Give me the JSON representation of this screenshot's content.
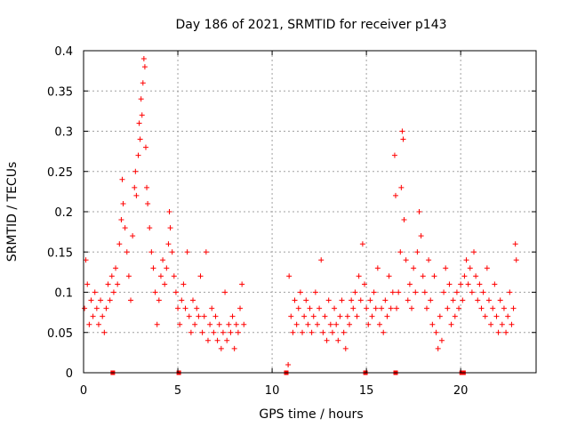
{
  "chart_data": {
    "type": "scatter",
    "title": "Day 186 of 2021, SRMTID for receiver p143",
    "xlabel": "GPS time / hours",
    "ylabel": "SRMTID / TECUs",
    "xlim": [
      0,
      24
    ],
    "ylim": [
      0,
      0.4
    ],
    "x_ticks": [
      0,
      5,
      10,
      15,
      20
    ],
    "x_tick_labels": [
      "0",
      "5",
      "10",
      "15",
      "20"
    ],
    "y_ticks": [
      0,
      0.05,
      0.1,
      0.15,
      0.2,
      0.25,
      0.3,
      0.35,
      0.4
    ],
    "y_tick_labels": [
      "0",
      "0.05",
      "0.1",
      "0.15",
      "0.2",
      "0.25",
      "0.3",
      "0.35",
      "0.4"
    ],
    "grid": true,
    "marker": "plus",
    "color": "#ff0000",
    "zero_markers_x": [
      1.55,
      5.05,
      10.75,
      14.95,
      16.55,
      20.05,
      20.15
    ],
    "series": [
      {
        "name": "SRMTID",
        "segments": [
          {
            "x_start": 0.0,
            "x_end": 8.55,
            "note": "morning arc with peak near 3.2 h"
          },
          {
            "x_start": 10.8,
            "x_end": 23.0,
            "note": "afternoon/evening arc with peak near 16.9 h"
          }
        ],
        "points": [
          [
            0.05,
            0.08
          ],
          [
            0.12,
            0.14
          ],
          [
            0.2,
            0.11
          ],
          [
            0.3,
            0.06
          ],
          [
            0.4,
            0.09
          ],
          [
            0.5,
            0.07
          ],
          [
            0.6,
            0.1
          ],
          [
            0.7,
            0.08
          ],
          [
            0.8,
            0.06
          ],
          [
            0.9,
            0.09
          ],
          [
            1.0,
            0.07
          ],
          [
            1.1,
            0.05
          ],
          [
            1.2,
            0.08
          ],
          [
            1.3,
            0.11
          ],
          [
            1.4,
            0.09
          ],
          [
            1.5,
            0.12
          ],
          [
            1.6,
            0.1
          ],
          [
            1.7,
            0.13
          ],
          [
            1.8,
            0.11
          ],
          [
            1.9,
            0.16
          ],
          [
            2.0,
            0.19
          ],
          [
            2.05,
            0.24
          ],
          [
            2.1,
            0.21
          ],
          [
            2.2,
            0.18
          ],
          [
            2.3,
            0.15
          ],
          [
            2.4,
            0.12
          ],
          [
            2.5,
            0.09
          ],
          [
            2.6,
            0.17
          ],
          [
            2.7,
            0.23
          ],
          [
            2.75,
            0.25
          ],
          [
            2.8,
            0.22
          ],
          [
            2.9,
            0.27
          ],
          [
            2.95,
            0.31
          ],
          [
            3.0,
            0.29
          ],
          [
            3.05,
            0.34
          ],
          [
            3.1,
            0.32
          ],
          [
            3.15,
            0.36
          ],
          [
            3.2,
            0.39
          ],
          [
            3.25,
            0.38
          ],
          [
            3.3,
            0.28
          ],
          [
            3.35,
            0.23
          ],
          [
            3.4,
            0.21
          ],
          [
            3.5,
            0.18
          ],
          [
            3.6,
            0.15
          ],
          [
            3.7,
            0.13
          ],
          [
            3.8,
            0.1
          ],
          [
            3.9,
            0.06
          ],
          [
            4.0,
            0.09
          ],
          [
            4.1,
            0.12
          ],
          [
            4.2,
            0.14
          ],
          [
            4.3,
            0.11
          ],
          [
            4.4,
            0.13
          ],
          [
            4.5,
            0.16
          ],
          [
            4.55,
            0.2
          ],
          [
            4.6,
            0.18
          ],
          [
            4.7,
            0.15
          ],
          [
            4.8,
            0.12
          ],
          [
            4.9,
            0.1
          ],
          [
            5.0,
            0.08
          ],
          [
            5.1,
            0.06
          ],
          [
            5.2,
            0.09
          ],
          [
            5.3,
            0.11
          ],
          [
            5.4,
            0.08
          ],
          [
            5.5,
            0.15
          ],
          [
            5.6,
            0.07
          ],
          [
            5.7,
            0.05
          ],
          [
            5.8,
            0.09
          ],
          [
            5.9,
            0.06
          ],
          [
            6.0,
            0.08
          ],
          [
            6.1,
            0.07
          ],
          [
            6.2,
            0.12
          ],
          [
            6.3,
            0.05
          ],
          [
            6.4,
            0.07
          ],
          [
            6.5,
            0.15
          ],
          [
            6.6,
            0.04
          ],
          [
            6.7,
            0.06
          ],
          [
            6.8,
            0.08
          ],
          [
            6.9,
            0.05
          ],
          [
            7.0,
            0.07
          ],
          [
            7.1,
            0.04
          ],
          [
            7.2,
            0.06
          ],
          [
            7.3,
            0.03
          ],
          [
            7.4,
            0.05
          ],
          [
            7.5,
            0.1
          ],
          [
            7.6,
            0.04
          ],
          [
            7.7,
            0.06
          ],
          [
            7.8,
            0.05
          ],
          [
            7.9,
            0.07
          ],
          [
            8.0,
            0.03
          ],
          [
            8.1,
            0.06
          ],
          [
            8.2,
            0.05
          ],
          [
            8.3,
            0.08
          ],
          [
            8.4,
            0.11
          ],
          [
            8.5,
            0.06
          ],
          [
            10.85,
            0.01
          ],
          [
            10.9,
            0.12
          ],
          [
            11.0,
            0.07
          ],
          [
            11.1,
            0.05
          ],
          [
            11.2,
            0.09
          ],
          [
            11.3,
            0.06
          ],
          [
            11.4,
            0.08
          ],
          [
            11.5,
            0.1
          ],
          [
            11.6,
            0.05
          ],
          [
            11.7,
            0.07
          ],
          [
            11.8,
            0.09
          ],
          [
            11.9,
            0.06
          ],
          [
            12.0,
            0.08
          ],
          [
            12.1,
            0.05
          ],
          [
            12.2,
            0.07
          ],
          [
            12.3,
            0.1
          ],
          [
            12.4,
            0.06
          ],
          [
            12.5,
            0.08
          ],
          [
            12.6,
            0.14
          ],
          [
            12.7,
            0.05
          ],
          [
            12.8,
            0.07
          ],
          [
            12.9,
            0.04
          ],
          [
            13.0,
            0.09
          ],
          [
            13.1,
            0.06
          ],
          [
            13.2,
            0.05
          ],
          [
            13.3,
            0.08
          ],
          [
            13.4,
            0.06
          ],
          [
            13.5,
            0.04
          ],
          [
            13.6,
            0.07
          ],
          [
            13.7,
            0.09
          ],
          [
            13.8,
            0.05
          ],
          [
            13.9,
            0.03
          ],
          [
            14.0,
            0.07
          ],
          [
            14.1,
            0.06
          ],
          [
            14.2,
            0.09
          ],
          [
            14.3,
            0.08
          ],
          [
            14.4,
            0.1
          ],
          [
            14.5,
            0.07
          ],
          [
            14.6,
            0.12
          ],
          [
            14.7,
            0.09
          ],
          [
            14.8,
            0.16
          ],
          [
            14.9,
            0.11
          ],
          [
            15.0,
            0.08
          ],
          [
            15.1,
            0.06
          ],
          [
            15.2,
            0.09
          ],
          [
            15.3,
            0.07
          ],
          [
            15.4,
            0.1
          ],
          [
            15.5,
            0.08
          ],
          [
            15.6,
            0.13
          ],
          [
            15.7,
            0.06
          ],
          [
            15.8,
            0.08
          ],
          [
            15.9,
            0.05
          ],
          [
            16.0,
            0.09
          ],
          [
            16.1,
            0.07
          ],
          [
            16.2,
            0.12
          ],
          [
            16.3,
            0.08
          ],
          [
            16.4,
            0.1
          ],
          [
            16.5,
            0.27
          ],
          [
            16.55,
            0.22
          ],
          [
            16.6,
            0.08
          ],
          [
            16.7,
            0.1
          ],
          [
            16.8,
            0.15
          ],
          [
            16.85,
            0.23
          ],
          [
            16.9,
            0.3
          ],
          [
            16.95,
            0.29
          ],
          [
            17.0,
            0.19
          ],
          [
            17.1,
            0.14
          ],
          [
            17.2,
            0.09
          ],
          [
            17.3,
            0.11
          ],
          [
            17.4,
            0.08
          ],
          [
            17.5,
            0.13
          ],
          [
            17.6,
            0.1
          ],
          [
            17.7,
            0.15
          ],
          [
            17.8,
            0.2
          ],
          [
            17.9,
            0.17
          ],
          [
            18.0,
            0.12
          ],
          [
            18.1,
            0.1
          ],
          [
            18.2,
            0.08
          ],
          [
            18.3,
            0.14
          ],
          [
            18.4,
            0.09
          ],
          [
            18.5,
            0.06
          ],
          [
            18.6,
            0.12
          ],
          [
            18.7,
            0.05
          ],
          [
            18.8,
            0.03
          ],
          [
            18.9,
            0.07
          ],
          [
            19.0,
            0.04
          ],
          [
            19.1,
            0.1
          ],
          [
            19.2,
            0.13
          ],
          [
            19.3,
            0.08
          ],
          [
            19.4,
            0.11
          ],
          [
            19.5,
            0.06
          ],
          [
            19.6,
            0.09
          ],
          [
            19.7,
            0.07
          ],
          [
            19.8,
            0.1
          ],
          [
            19.9,
            0.08
          ],
          [
            20.0,
            0.11
          ],
          [
            20.1,
            0.09
          ],
          [
            20.2,
            0.12
          ],
          [
            20.3,
            0.14
          ],
          [
            20.4,
            0.11
          ],
          [
            20.5,
            0.13
          ],
          [
            20.6,
            0.1
          ],
          [
            20.7,
            0.15
          ],
          [
            20.8,
            0.12
          ],
          [
            20.9,
            0.09
          ],
          [
            21.0,
            0.11
          ],
          [
            21.1,
            0.08
          ],
          [
            21.2,
            0.1
          ],
          [
            21.3,
            0.07
          ],
          [
            21.4,
            0.13
          ],
          [
            21.5,
            0.09
          ],
          [
            21.6,
            0.06
          ],
          [
            21.7,
            0.08
          ],
          [
            21.8,
            0.11
          ],
          [
            21.9,
            0.07
          ],
          [
            22.0,
            0.05
          ],
          [
            22.1,
            0.09
          ],
          [
            22.2,
            0.06
          ],
          [
            22.3,
            0.08
          ],
          [
            22.4,
            0.05
          ],
          [
            22.5,
            0.07
          ],
          [
            22.6,
            0.1
          ],
          [
            22.7,
            0.06
          ],
          [
            22.8,
            0.08
          ],
          [
            22.9,
            0.16
          ],
          [
            22.95,
            0.14
          ]
        ]
      }
    ]
  }
}
